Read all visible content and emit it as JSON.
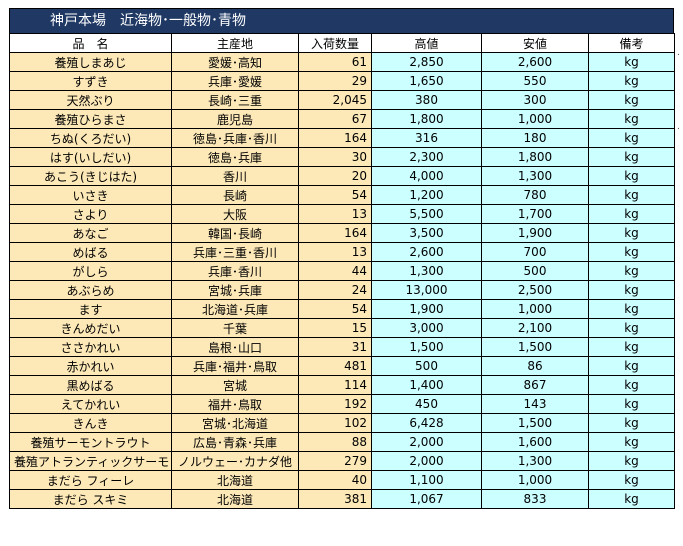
{
  "title": "神戸本場　近海物･一般物･青物",
  "columns": [
    "品　名",
    "主産地",
    "入荷数量",
    "高値",
    "安値",
    "備考"
  ],
  "rows": [
    [
      "養殖しまあじ",
      "愛媛･高知",
      "61",
      "2,850",
      "2,600",
      "kg"
    ],
    [
      "すずき",
      "兵庫･愛媛",
      "29",
      "1,650",
      "550",
      "kg"
    ],
    [
      "天然ぶり",
      "長崎･三重",
      "2,045",
      "380",
      "300",
      "kg"
    ],
    [
      "養殖ひらまさ",
      "鹿児島",
      "67",
      "1,800",
      "1,000",
      "kg"
    ],
    [
      "ちぬ(くろだい)",
      "徳島･兵庫･香川",
      "164",
      "316",
      "180",
      "kg"
    ],
    [
      "はす(いしだい)",
      "徳島･兵庫",
      "30",
      "2,300",
      "1,800",
      "kg"
    ],
    [
      "あこう(きじはた)",
      "香川",
      "20",
      "4,000",
      "1,300",
      "kg"
    ],
    [
      "いさき",
      "長崎",
      "54",
      "1,200",
      "780",
      "kg"
    ],
    [
      "さより",
      "大阪",
      "13",
      "5,500",
      "1,700",
      "kg"
    ],
    [
      "あなご",
      "韓国･長崎",
      "164",
      "3,500",
      "1,900",
      "kg"
    ],
    [
      "めばる",
      "兵庫･三重･香川",
      "13",
      "2,600",
      "700",
      "kg"
    ],
    [
      "がしら",
      "兵庫･香川",
      "44",
      "1,300",
      "500",
      "kg"
    ],
    [
      "あぶらめ",
      "宮城･兵庫",
      "24",
      "13,000",
      "2,500",
      "kg"
    ],
    [
      "ます",
      "北海道･兵庫",
      "54",
      "1,900",
      "1,000",
      "kg"
    ],
    [
      "きんめだい",
      "千葉",
      "15",
      "3,000",
      "2,100",
      "kg"
    ],
    [
      "ささかれい",
      "島根･山口",
      "31",
      "1,500",
      "1,500",
      "kg"
    ],
    [
      "赤かれい",
      "兵庫･福井･鳥取",
      "481",
      "500",
      "86",
      "kg"
    ],
    [
      "黒めばる",
      "宮城",
      "114",
      "1,400",
      "867",
      "kg"
    ],
    [
      "えてかれい",
      "福井･鳥取",
      "192",
      "450",
      "143",
      "kg"
    ],
    [
      "きんき",
      "宮城･北海道",
      "102",
      "6,428",
      "1,500",
      "kg"
    ],
    [
      "養殖サーモントラウト",
      "広島･青森･兵庫",
      "88",
      "2,000",
      "1,600",
      "kg"
    ],
    [
      "養殖アトランティックサーモン",
      "ノルウェー･カナダ他",
      "279",
      "2,000",
      "1,300",
      "kg"
    ],
    [
      "まだら フィーレ",
      "北海道",
      "40",
      "1,100",
      "1,000",
      "kg"
    ],
    [
      "まだら スキミ",
      "北海道",
      "381",
      "1,067",
      "833",
      "kg"
    ]
  ],
  "colors": {
    "title_bg": "#1f3864",
    "name_bg": "#fde9b8",
    "price_bg": "#ccffff"
  }
}
